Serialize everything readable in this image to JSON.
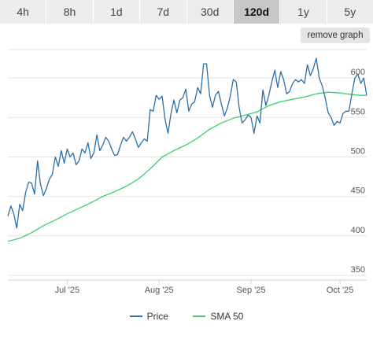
{
  "tabs": [
    {
      "label": "4h",
      "active": false
    },
    {
      "label": "8h",
      "active": false
    },
    {
      "label": "1d",
      "active": false
    },
    {
      "label": "7d",
      "active": false
    },
    {
      "label": "30d",
      "active": false
    },
    {
      "label": "120d",
      "active": true
    },
    {
      "label": "1y",
      "active": false
    },
    {
      "label": "5y",
      "active": false
    }
  ],
  "remove_graph_label": "remove graph",
  "colors": {
    "price": "#2c6fa6",
    "sma": "#3fcf6f",
    "grid": "#e4e4e4"
  },
  "chart_data": {
    "type": "line",
    "y_ticks": [
      350,
      400,
      450,
      500,
      550,
      600
    ],
    "ylim": [
      344,
      636
    ],
    "xlim": [
      0,
      121
    ],
    "x_ticks": [
      {
        "label": "Jul '25",
        "x": 20
      },
      {
        "label": "Aug '25",
        "x": 51
      },
      {
        "label": "Sep '25",
        "x": 82
      },
      {
        "label": "Oct '25",
        "x": 112
      }
    ],
    "series": [
      {
        "name": "Price",
        "color": "#2c6fa6",
        "points": [
          [
            0,
            425
          ],
          [
            1,
            438
          ],
          [
            2,
            428
          ],
          [
            3,
            410
          ],
          [
            4,
            440
          ],
          [
            5,
            432
          ],
          [
            6,
            455
          ],
          [
            7,
            468
          ],
          [
            8,
            467
          ],
          [
            9,
            453
          ],
          [
            10,
            495
          ],
          [
            11,
            465
          ],
          [
            12,
            451
          ],
          [
            13,
            460
          ],
          [
            14,
            472
          ],
          [
            15,
            478
          ],
          [
            16,
            500
          ],
          [
            17,
            488
          ],
          [
            18,
            508
          ],
          [
            19,
            492
          ],
          [
            20,
            510
          ],
          [
            21,
            500
          ],
          [
            22,
            505
          ],
          [
            23,
            490
          ],
          [
            24,
            495
          ],
          [
            25,
            510
          ],
          [
            26,
            505
          ],
          [
            27,
            518
          ],
          [
            28,
            498
          ],
          [
            29,
            505
          ],
          [
            30,
            528
          ],
          [
            31,
            508
          ],
          [
            32,
            515
          ],
          [
            33,
            525
          ],
          [
            34,
            520
          ],
          [
            35,
            510
          ],
          [
            36,
            502
          ],
          [
            37,
            503
          ],
          [
            38,
            515
          ],
          [
            39,
            525
          ],
          [
            40,
            520
          ],
          [
            41,
            525
          ],
          [
            42,
            532
          ],
          [
            43,
            523
          ],
          [
            44,
            512
          ],
          [
            45,
            518
          ],
          [
            46,
            523
          ],
          [
            47,
            520
          ],
          [
            48,
            560
          ],
          [
            49,
            558
          ],
          [
            50,
            578
          ],
          [
            51,
            573
          ],
          [
            52,
            577
          ],
          [
            53,
            548
          ],
          [
            54,
            530
          ],
          [
            55,
            555
          ],
          [
            56,
            572
          ],
          [
            57,
            556
          ],
          [
            58,
            572
          ],
          [
            59,
            575
          ],
          [
            60,
            586
          ],
          [
            61,
            558
          ],
          [
            62,
            567
          ],
          [
            63,
            570
          ],
          [
            64,
            588
          ],
          [
            65,
            580
          ],
          [
            66,
            618
          ],
          [
            67,
            618
          ],
          [
            68,
            578
          ],
          [
            69,
            563
          ],
          [
            70,
            578
          ],
          [
            71,
            583
          ],
          [
            72,
            567
          ],
          [
            73,
            552
          ],
          [
            74,
            562
          ],
          [
            75,
            577
          ],
          [
            76,
            598
          ],
          [
            77,
            595
          ],
          [
            78,
            562
          ],
          [
            79,
            543
          ],
          [
            80,
            547
          ],
          [
            81,
            553
          ],
          [
            82,
            550
          ],
          [
            83,
            530
          ],
          [
            84,
            552
          ],
          [
            85,
            543
          ],
          [
            86,
            585
          ],
          [
            87,
            565
          ],
          [
            88,
            578
          ],
          [
            89,
            595
          ],
          [
            90,
            610
          ],
          [
            91,
            588
          ],
          [
            92,
            608
          ],
          [
            93,
            598
          ],
          [
            94,
            580
          ],
          [
            95,
            583
          ],
          [
            96,
            593
          ],
          [
            97,
            598
          ],
          [
            98,
            595
          ],
          [
            99,
            598
          ],
          [
            100,
            593
          ],
          [
            101,
            617
          ],
          [
            102,
            603
          ],
          [
            103,
            612
          ],
          [
            104,
            625
          ],
          [
            105,
            600
          ],
          [
            106,
            590
          ],
          [
            107,
            575
          ],
          [
            108,
            556
          ],
          [
            109,
            550
          ],
          [
            110,
            540
          ],
          [
            111,
            545
          ],
          [
            112,
            543
          ],
          [
            113,
            555
          ],
          [
            114,
            558
          ],
          [
            115,
            558
          ],
          [
            116,
            580
          ],
          [
            117,
            600
          ],
          [
            118,
            605
          ],
          [
            119,
            593
          ],
          [
            120,
            600
          ],
          [
            121,
            578
          ]
        ]
      },
      {
        "name": "SMA 50",
        "color": "#3fcf6f",
        "points": [
          [
            0,
            393
          ],
          [
            4,
            397
          ],
          [
            8,
            404
          ],
          [
            12,
            413
          ],
          [
            16,
            420
          ],
          [
            20,
            428
          ],
          [
            24,
            435
          ],
          [
            28,
            442
          ],
          [
            32,
            450
          ],
          [
            36,
            456
          ],
          [
            40,
            463
          ],
          [
            44,
            472
          ],
          [
            48,
            485
          ],
          [
            52,
            500
          ],
          [
            56,
            508
          ],
          [
            60,
            515
          ],
          [
            64,
            524
          ],
          [
            68,
            535
          ],
          [
            72,
            543
          ],
          [
            76,
            549
          ],
          [
            80,
            553
          ],
          [
            84,
            557
          ],
          [
            88,
            565
          ],
          [
            92,
            570
          ],
          [
            96,
            573
          ],
          [
            100,
            576
          ],
          [
            104,
            580
          ],
          [
            108,
            582
          ],
          [
            112,
            581
          ],
          [
            116,
            579
          ],
          [
            119,
            578
          ],
          [
            121,
            578
          ]
        ]
      }
    ]
  }
}
